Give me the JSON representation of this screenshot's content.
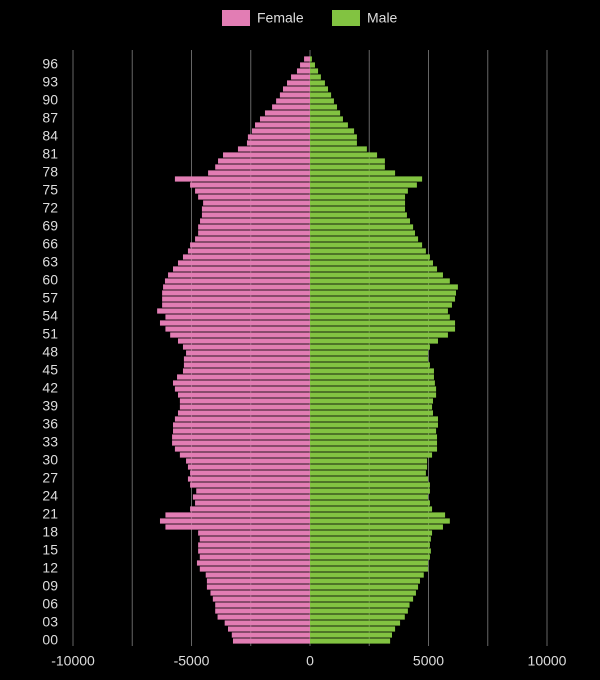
{
  "chart_data": {
    "type": "pyramid",
    "categories": [
      "00",
      null,
      null,
      "03",
      null,
      null,
      "06",
      null,
      null,
      "09",
      null,
      null,
      "12",
      null,
      null,
      "15",
      null,
      null,
      "18",
      null,
      null,
      "21",
      null,
      null,
      "24",
      null,
      null,
      "27",
      null,
      null,
      "30",
      null,
      null,
      "33",
      null,
      null,
      "36",
      null,
      null,
      "39",
      null,
      null,
      "42",
      null,
      null,
      "45",
      null,
      null,
      "48",
      null,
      null,
      "51",
      null,
      null,
      "54",
      null,
      null,
      "57",
      null,
      null,
      "60",
      null,
      null,
      "63",
      null,
      null,
      "66",
      null,
      null,
      "69",
      null,
      null,
      "72",
      null,
      null,
      "75",
      null,
      null,
      "78",
      null,
      null,
      "81",
      null,
      null,
      "84",
      null,
      null,
      "87",
      null,
      null,
      "90",
      null,
      null,
      "93",
      null,
      null,
      "96",
      null
    ],
    "series": [
      {
        "name": "Female",
        "color": "#e27db4",
        "values": [
          -3250,
          -3300,
          -3460,
          -3600,
          -3900,
          -4000,
          -4000,
          -4100,
          -4200,
          -4350,
          -4350,
          -4400,
          -4650,
          -4770,
          -4650,
          -4720,
          -4720,
          -4650,
          -4720,
          -6100,
          -6330,
          -6100,
          -5060,
          -4850,
          -4940,
          -4800,
          -5060,
          -5150,
          -5060,
          -5150,
          -5230,
          -5490,
          -5700,
          -5820,
          -5820,
          -5780,
          -5780,
          -5700,
          -5570,
          -5490,
          -5490,
          -5570,
          -5700,
          -5780,
          -5610,
          -5360,
          -5320,
          -5320,
          -5230,
          -5360,
          -5570,
          -5900,
          -6100,
          -6330,
          -6100,
          -6450,
          -6240,
          -6240,
          -6240,
          -6200,
          -6120,
          -5990,
          -5780,
          -5570,
          -5360,
          -5150,
          -5060,
          -4850,
          -4720,
          -4720,
          -4640,
          -4560,
          -4560,
          -4510,
          -4720,
          -4850,
          -5060,
          -5700,
          -4300,
          -4000,
          -3880,
          -3670,
          -3040,
          -2660,
          -2620,
          -2450,
          -2320,
          -2110,
          -1900,
          -1600,
          -1430,
          -1270,
          -1140,
          -970,
          -800,
          -550,
          -420,
          -250
        ]
      },
      {
        "name": "Male",
        "color": "#82c341",
        "values": [
          3380,
          3460,
          3590,
          3800,
          4000,
          4130,
          4200,
          4350,
          4470,
          4560,
          4640,
          4800,
          4980,
          4980,
          5060,
          5100,
          5060,
          5100,
          5150,
          5610,
          5900,
          5700,
          5150,
          5060,
          4980,
          5060,
          5060,
          4980,
          4890,
          4940,
          4940,
          5150,
          5360,
          5360,
          5360,
          5320,
          5400,
          5400,
          5190,
          5150,
          5190,
          5320,
          5320,
          5270,
          5230,
          5230,
          5060,
          4980,
          4980,
          5060,
          5400,
          5820,
          6120,
          6120,
          5900,
          5820,
          5990,
          6120,
          6160,
          6240,
          5900,
          5610,
          5360,
          5190,
          5060,
          4890,
          4730,
          4560,
          4430,
          4350,
          4220,
          4090,
          4010,
          4010,
          4010,
          4130,
          4510,
          4730,
          3590,
          3160,
          3160,
          2830,
          2400,
          1980,
          1980,
          1860,
          1600,
          1390,
          1270,
          1140,
          1010,
          890,
          760,
          630,
          460,
          340,
          210,
          80
        ]
      }
    ],
    "xlim": [
      -10000,
      10000
    ],
    "xticks": [
      -10000,
      -5000,
      0,
      5000,
      10000
    ],
    "xgrid": [
      -10000,
      -7500,
      -5000,
      -2500,
      0,
      2500,
      5000,
      7500,
      10000
    ],
    "grid": true,
    "legend": "top"
  }
}
